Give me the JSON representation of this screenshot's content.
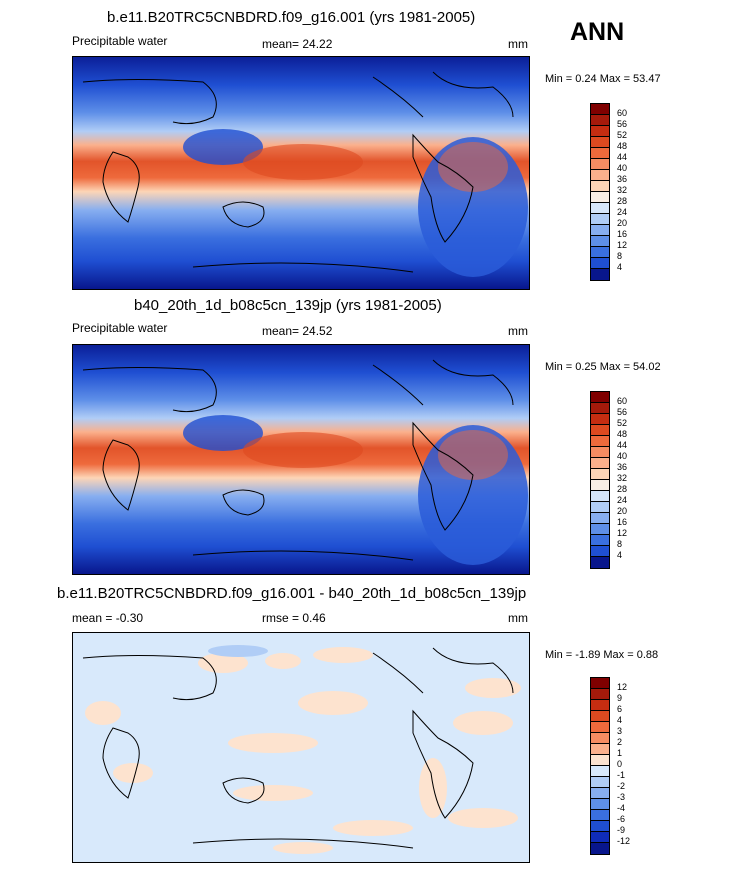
{
  "panels": [
    {
      "title": "b.e11.B20TRC5CNBDRD.f09_g16.001 (yrs 1981-2005)",
      "variable": "Precipitable water",
      "stat_text": "mean=  24.22",
      "units": "mm",
      "minmax": "Min =   0.24 Max =  53.47"
    },
    {
      "title": "b40_20th_1d_b08c5cn_139jp (yrs 1981-2005)",
      "variable": "Precipitable water",
      "stat_text": "mean=  24.52",
      "units": "mm",
      "minmax": "Min =   0.25 Max =  54.02"
    },
    {
      "title": "b.e11.B20TRC5CNBDRD.f09_g16.001 - b40_20th_1d_b08c5cn_139jp",
      "variable": "mean =  -0.30",
      "stat_text": "rmse =   0.46",
      "units": "mm",
      "minmax": "Min =  -1.89 Max =   0.88"
    }
  ],
  "season": "ANN",
  "colorbars": {
    "abs": {
      "labels": [
        "60",
        "56",
        "52",
        "48",
        "44",
        "40",
        "36",
        "32",
        "28",
        "24",
        "20",
        "16",
        "12",
        "8",
        "4"
      ],
      "colors": [
        "#7f0000",
        "#a51a0b",
        "#c52d11",
        "#dd4a20",
        "#ee6a3c",
        "#f68c62",
        "#fbb08c",
        "#fdd5b6",
        "#f8eee5",
        "#d6e6fa",
        "#b0cdf6",
        "#87aef0",
        "#5e8fe8",
        "#3a6fdf",
        "#1f4fd2",
        "#08168c"
      ]
    },
    "diff": {
      "labels": [
        "12",
        "9",
        "6",
        "4",
        "3",
        "2",
        "1",
        "0",
        "-1",
        "-2",
        "-3",
        "-4",
        "-6",
        "-9",
        "-12"
      ],
      "colors": [
        "#7f0000",
        "#a51a0b",
        "#c52d11",
        "#dd4a20",
        "#ee6a3c",
        "#f68c62",
        "#fbb08c",
        "#fde3cf",
        "#d8e9fb",
        "#b0cdf6",
        "#87aef0",
        "#5e8fe8",
        "#3a6fdf",
        "#1f4fd2",
        "#0f2cb8",
        "#08168c"
      ]
    }
  }
}
